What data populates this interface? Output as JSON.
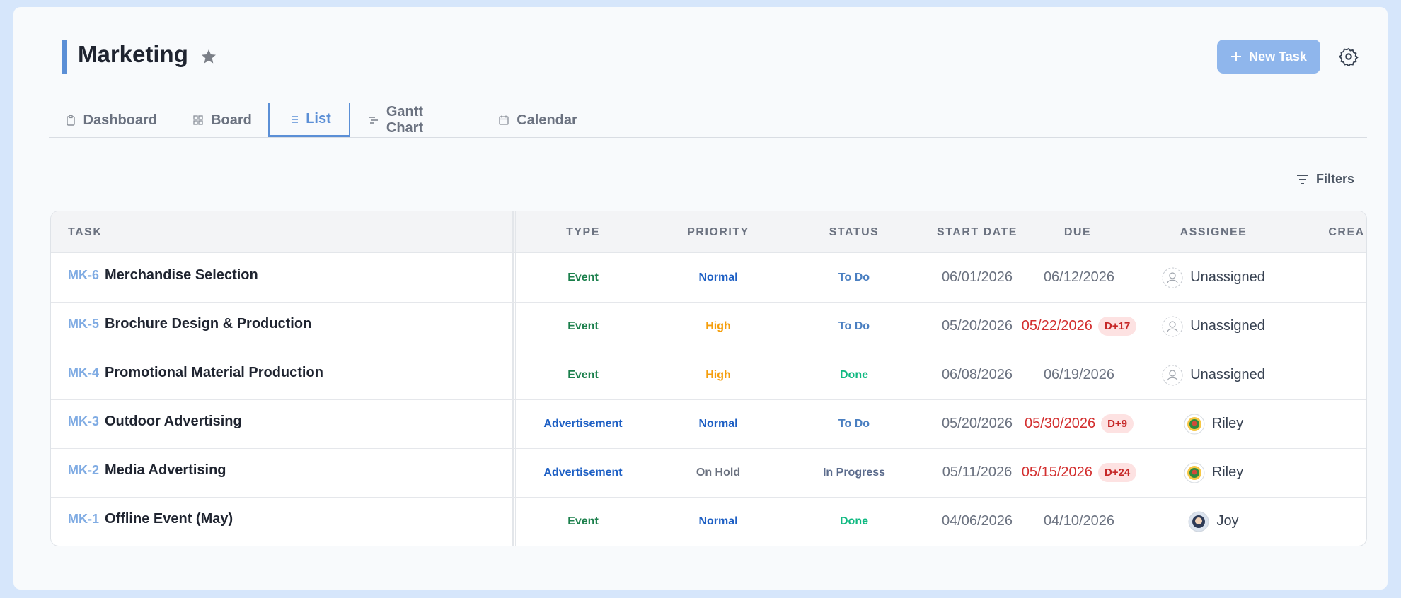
{
  "header": {
    "title": "Marketing",
    "new_task": "New Task"
  },
  "tabs": [
    "Dashboard",
    "Board",
    "List",
    "Gantt Chart",
    "Calendar"
  ],
  "active_tab": 2,
  "filters": "Filters",
  "table": {
    "columns": [
      "TASK",
      "TYPE",
      "PRIORITY",
      "STATUS",
      "START DATE",
      "DUE",
      "ASSIGNEE",
      "CREA"
    ],
    "rows": [
      {
        "id": "MK-6",
        "name": "Merchandise Selection",
        "type": "Event",
        "priority": "Normal",
        "status": "To Do",
        "start": "06/01/2026",
        "due": "06/12/2026",
        "assignee": "Unassigned"
      },
      {
        "id": "MK-5",
        "name": "Brochure Design & Production",
        "type": "Event",
        "priority": "High",
        "status": "To Do",
        "start": "05/20/2026",
        "due": "05/22/2026",
        "overdue": "D+17",
        "assignee": "Unassigned"
      },
      {
        "id": "MK-4",
        "name": "Promotional Material Production",
        "type": "Event",
        "priority": "High",
        "status": "Done",
        "start": "06/08/2026",
        "due": "06/19/2026",
        "assignee": "Unassigned"
      },
      {
        "id": "MK-3",
        "name": "Outdoor Advertising",
        "type": "Advertisement",
        "priority": "Normal",
        "status": "To Do",
        "start": "05/20/2026",
        "due": "05/30/2026",
        "overdue": "D+9",
        "assignee": "Riley"
      },
      {
        "id": "MK-2",
        "name": "Media Advertising",
        "type": "Advertisement",
        "priority": "On Hold",
        "status": "In Progress",
        "start": "05/11/2026",
        "due": "05/15/2026",
        "overdue": "D+24",
        "assignee": "Riley"
      },
      {
        "id": "MK-1",
        "name": "Offline Event (May)",
        "type": "Event",
        "priority": "Normal",
        "status": "Done",
        "start": "04/06/2026",
        "due": "04/10/2026",
        "assignee": "Joy"
      }
    ]
  }
}
